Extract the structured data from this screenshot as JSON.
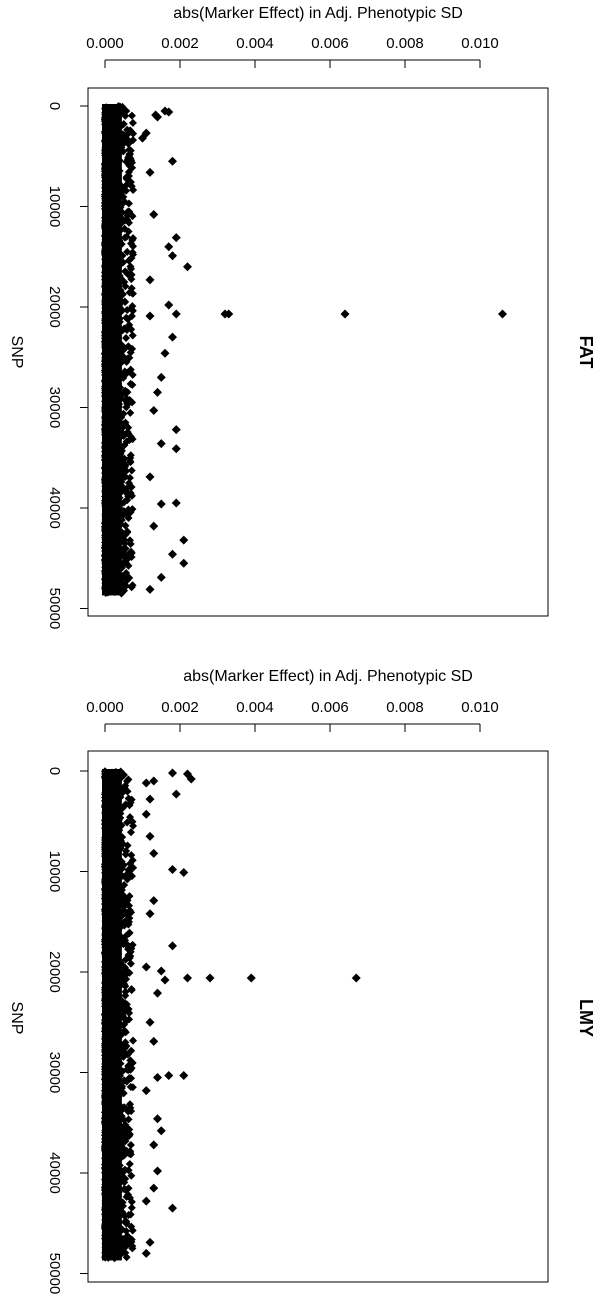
{
  "chart_data": [
    {
      "type": "scatter",
      "panel_label": "FAT",
      "title": "",
      "xlabel": "abs(Marker Effect) in Adj. Phenotypic SD",
      "ylabel": "SNP",
      "xlim": [
        0,
        0.0115
      ],
      "ylim": [
        0,
        50000
      ],
      "x_ticks": [
        "0.000",
        "0.002",
        "0.004",
        "0.006",
        "0.008",
        "0.010"
      ],
      "y_ticks": [
        "0",
        "10000",
        "20000",
        "30000",
        "40000",
        "50000"
      ],
      "y_reversed": true,
      "n_snps": 48500,
      "dense_band_max_effect": 0.00075,
      "marker": "filled-diamond",
      "outliers": [
        {
          "snp": 500,
          "effect": 0.0016
        },
        {
          "snp": 600,
          "effect": 0.0017
        },
        {
          "snp": 900,
          "effect": 0.00135
        },
        {
          "snp": 1100,
          "effect": 0.0014
        },
        {
          "snp": 2700,
          "effect": 0.0011
        },
        {
          "snp": 3200,
          "effect": 0.001
        },
        {
          "snp": 5500,
          "effect": 0.0018
        },
        {
          "snp": 6600,
          "effect": 0.0012
        },
        {
          "snp": 10800,
          "effect": 0.0013
        },
        {
          "snp": 13100,
          "effect": 0.0019
        },
        {
          "snp": 14000,
          "effect": 0.0017
        },
        {
          "snp": 14900,
          "effect": 0.0018
        },
        {
          "snp": 16000,
          "effect": 0.0022
        },
        {
          "snp": 17300,
          "effect": 0.0012
        },
        {
          "snp": 19800,
          "effect": 0.0017
        },
        {
          "snp": 20700,
          "effect": 0.0032
        },
        {
          "snp": 20700,
          "effect": 0.0033
        },
        {
          "snp": 20700,
          "effect": 0.0064
        },
        {
          "snp": 20700,
          "effect": 0.0106
        },
        {
          "snp": 20700,
          "effect": 0.0019
        },
        {
          "snp": 20900,
          "effect": 0.0012
        },
        {
          "snp": 23000,
          "effect": 0.0018
        },
        {
          "snp": 24600,
          "effect": 0.0016
        },
        {
          "snp": 27000,
          "effect": 0.0015
        },
        {
          "snp": 28500,
          "effect": 0.0014
        },
        {
          "snp": 30300,
          "effect": 0.0013
        },
        {
          "snp": 32200,
          "effect": 0.0019
        },
        {
          "snp": 33600,
          "effect": 0.0015
        },
        {
          "snp": 34100,
          "effect": 0.0019
        },
        {
          "snp": 36900,
          "effect": 0.0012
        },
        {
          "snp": 39600,
          "effect": 0.0015
        },
        {
          "snp": 39500,
          "effect": 0.0019
        },
        {
          "snp": 41800,
          "effect": 0.0013
        },
        {
          "snp": 43200,
          "effect": 0.0021
        },
        {
          "snp": 44600,
          "effect": 0.0018
        },
        {
          "snp": 45500,
          "effect": 0.0021
        },
        {
          "snp": 46900,
          "effect": 0.0015
        },
        {
          "snp": 48100,
          "effect": 0.0012
        }
      ]
    },
    {
      "type": "scatter",
      "panel_label": "LMY",
      "title": "",
      "xlabel": "abs(Marker Effect) in Adj. Phenotypic SD",
      "ylabel": "SNP",
      "xlim": [
        0,
        0.0115
      ],
      "ylim": [
        0,
        50000
      ],
      "x_ticks": [
        "0.000",
        "0.002",
        "0.004",
        "0.006",
        "0.008",
        "0.010"
      ],
      "y_ticks": [
        "0",
        "10000",
        "20000",
        "30000",
        "40000",
        "50000"
      ],
      "y_reversed": true,
      "n_snps": 48500,
      "dense_band_max_effect": 0.00075,
      "marker": "filled-diamond",
      "outliers": [
        {
          "snp": 200,
          "effect": 0.0018
        },
        {
          "snp": 300,
          "effect": 0.0022
        },
        {
          "snp": 800,
          "effect": 0.0023
        },
        {
          "snp": 1000,
          "effect": 0.0013
        },
        {
          "snp": 1200,
          "effect": 0.0011
        },
        {
          "snp": 2300,
          "effect": 0.0019
        },
        {
          "snp": 2800,
          "effect": 0.0012
        },
        {
          "snp": 4300,
          "effect": 0.0011
        },
        {
          "snp": 6500,
          "effect": 0.0012
        },
        {
          "snp": 8200,
          "effect": 0.0013
        },
        {
          "snp": 9800,
          "effect": 0.0018
        },
        {
          "snp": 10100,
          "effect": 0.0021
        },
        {
          "snp": 12900,
          "effect": 0.0013
        },
        {
          "snp": 14200,
          "effect": 0.0012
        },
        {
          "snp": 17400,
          "effect": 0.0018
        },
        {
          "snp": 19500,
          "effect": 0.0011
        },
        {
          "snp": 19900,
          "effect": 0.0015
        },
        {
          "snp": 20600,
          "effect": 0.0022
        },
        {
          "snp": 20600,
          "effect": 0.0028
        },
        {
          "snp": 20600,
          "effect": 0.0039
        },
        {
          "snp": 20600,
          "effect": 0.0067
        },
        {
          "snp": 20800,
          "effect": 0.0016
        },
        {
          "snp": 22100,
          "effect": 0.0014
        },
        {
          "snp": 25000,
          "effect": 0.0012
        },
        {
          "snp": 26900,
          "effect": 0.0013
        },
        {
          "snp": 30300,
          "effect": 0.0021
        },
        {
          "snp": 30300,
          "effect": 0.0017
        },
        {
          "snp": 30500,
          "effect": 0.0014
        },
        {
          "snp": 31800,
          "effect": 0.0011
        },
        {
          "snp": 34600,
          "effect": 0.0014
        },
        {
          "snp": 35800,
          "effect": 0.0015
        },
        {
          "snp": 37200,
          "effect": 0.0013
        },
        {
          "snp": 39800,
          "effect": 0.0014
        },
        {
          "snp": 41500,
          "effect": 0.0013
        },
        {
          "snp": 42800,
          "effect": 0.0011
        },
        {
          "snp": 43500,
          "effect": 0.0018
        },
        {
          "snp": 46900,
          "effect": 0.0012
        },
        {
          "snp": 48000,
          "effect": 0.0011
        }
      ]
    }
  ]
}
